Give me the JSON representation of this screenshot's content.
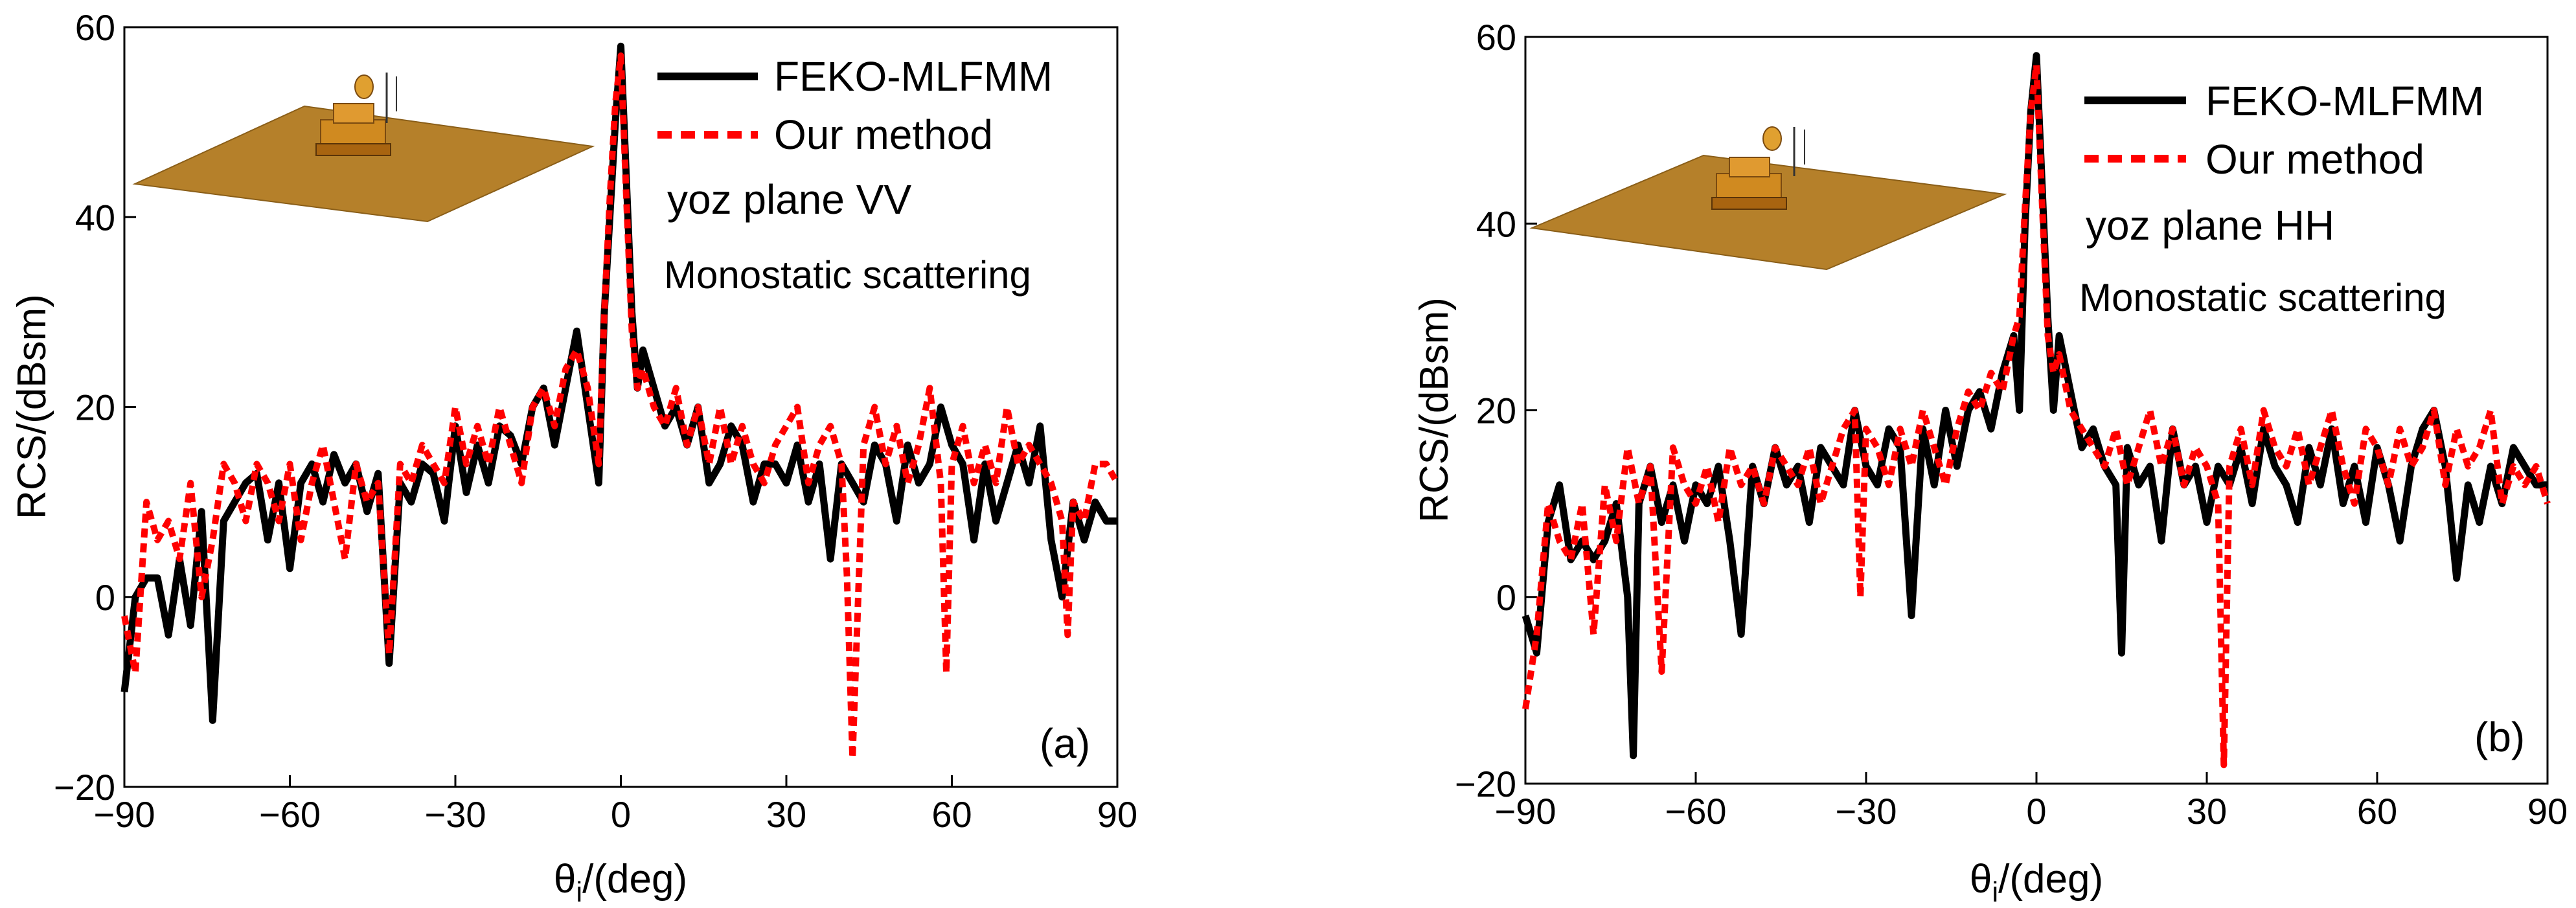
{
  "chart_data": [
    {
      "type": "line",
      "panel_label": "(a)",
      "xlabel_main": "θ",
      "xlabel_sub": "i",
      "xlabel_rest": "/(deg)",
      "ylabel": "RCS/(dBsm)",
      "xlim": [
        -90,
        90
      ],
      "ylim": [
        -20,
        60
      ],
      "xticks": [
        -90,
        -60,
        -30,
        0,
        30,
        60,
        90
      ],
      "yticks": [
        -20,
        0,
        20,
        40,
        60
      ],
      "xtick_labels": [
        "−90",
        "−60",
        "−30",
        "0",
        "30",
        "60",
        "90"
      ],
      "ytick_labels": [
        "−20",
        "0",
        "20",
        "40",
        "60"
      ],
      "legend": [
        "FEKO-MLFMM",
        "Our method"
      ],
      "annotations": [
        "yoz plane  VV",
        "Monostatic scattering"
      ],
      "series": [
        {
          "name": "FEKO-MLFMM",
          "color": "#000000",
          "x": [
            -90,
            -88,
            -86,
            -84,
            -82,
            -80,
            -78,
            -76,
            -74,
            -72,
            -70,
            -68,
            -66,
            -64,
            -62,
            -60,
            -58,
            -56,
            -54,
            -52,
            -50,
            -48,
            -46,
            -44,
            -42,
            -40,
            -38,
            -36,
            -34,
            -32,
            -30,
            -28,
            -26,
            -24,
            -22,
            -20,
            -18,
            -16,
            -14,
            -12,
            -10,
            -8,
            -6,
            -4,
            -3,
            -2,
            -1,
            0,
            1,
            2,
            3,
            4,
            6,
            8,
            10,
            12,
            14,
            16,
            18,
            20,
            22,
            24,
            26,
            28,
            30,
            32,
            34,
            36,
            38,
            40,
            42,
            44,
            46,
            48,
            50,
            52,
            54,
            56,
            58,
            60,
            62,
            64,
            66,
            68,
            70,
            72,
            74,
            76,
            78,
            80,
            82,
            84,
            86,
            88,
            90
          ],
          "y": [
            -10,
            0,
            2,
            2,
            -4,
            4,
            -3,
            9,
            -13,
            8,
            10,
            12,
            13,
            6,
            12,
            3,
            12,
            14,
            10,
            15,
            12,
            14,
            9,
            13,
            -7,
            12,
            10,
            14,
            13,
            8,
            18,
            11,
            16,
            12,
            18,
            17,
            14,
            20,
            22,
            16,
            22,
            28,
            20,
            12,
            30,
            40,
            50,
            58,
            44,
            30,
            22,
            26,
            22,
            18,
            20,
            16,
            20,
            12,
            14,
            18,
            16,
            10,
            14,
            14,
            12,
            16,
            10,
            14,
            4,
            14,
            12,
            10,
            16,
            14,
            8,
            16,
            12,
            14,
            20,
            16,
            14,
            6,
            14,
            8,
            12,
            16,
            12,
            18,
            6,
            0,
            10,
            6,
            10,
            8,
            8
          ],
          "dash": ""
        },
        {
          "name": "Our method",
          "color": "#ff0000",
          "x": [
            -90,
            -88,
            -86,
            -84,
            -82,
            -80,
            -78,
            -76,
            -74,
            -72,
            -70,
            -68,
            -66,
            -64,
            -62,
            -60,
            -58,
            -56,
            -54,
            -52,
            -50,
            -48,
            -46,
            -44,
            -42,
            -40,
            -38,
            -36,
            -34,
            -32,
            -30,
            -28,
            -26,
            -24,
            -22,
            -20,
            -18,
            -16,
            -14,
            -12,
            -10,
            -8,
            -6,
            -4,
            -3,
            -2,
            -1,
            0,
            1,
            2,
            3,
            4,
            6,
            8,
            10,
            12,
            14,
            16,
            18,
            20,
            22,
            24,
            26,
            28,
            30,
            32,
            34,
            36,
            38,
            40,
            41,
            42,
            44,
            46,
            48,
            50,
            52,
            54,
            56,
            58,
            59,
            60,
            62,
            64,
            66,
            68,
            70,
            72,
            74,
            76,
            78,
            80,
            81,
            82,
            84,
            86,
            88,
            90
          ],
          "y": [
            -2,
            -8,
            10,
            6,
            8,
            4,
            12,
            0,
            6,
            14,
            12,
            8,
            14,
            12,
            8,
            14,
            6,
            12,
            16,
            10,
            4,
            14,
            10,
            12,
            -6,
            14,
            12,
            16,
            14,
            12,
            20,
            14,
            18,
            14,
            20,
            16,
            12,
            20,
            22,
            18,
            24,
            26,
            22,
            14,
            30,
            42,
            52,
            57,
            42,
            28,
            22,
            24,
            20,
            18,
            22,
            16,
            20,
            14,
            20,
            14,
            18,
            14,
            12,
            16,
            18,
            20,
            12,
            16,
            18,
            14,
            2,
            -17,
            16,
            20,
            14,
            18,
            12,
            16,
            22,
            12,
            -8,
            14,
            18,
            12,
            16,
            12,
            20,
            14,
            16,
            14,
            12,
            8,
            -4,
            10,
            8,
            14,
            14,
            12
          ],
          "dash": "14 9"
        }
      ]
    },
    {
      "type": "line",
      "panel_label": "(b)",
      "xlabel_main": "θ",
      "xlabel_sub": "i",
      "xlabel_rest": "/(deg)",
      "ylabel": "RCS/(dBsm)",
      "xlim": [
        -90,
        90
      ],
      "ylim": [
        -20,
        60
      ],
      "xticks": [
        -90,
        -60,
        -30,
        0,
        30,
        60,
        90
      ],
      "yticks": [
        -20,
        0,
        20,
        40,
        60
      ],
      "xtick_labels": [
        "−90",
        "−60",
        "−30",
        "0",
        "30",
        "60",
        "90"
      ],
      "ytick_labels": [
        "−20",
        "0",
        "20",
        "40",
        "60"
      ],
      "legend": [
        "FEKO-MLFMM",
        "Our method"
      ],
      "annotations": [
        "yoz plane  HH",
        "Monostatic scattering"
      ],
      "series": [
        {
          "name": "FEKO-MLFMM",
          "color": "#000000",
          "x": [
            -90,
            -88,
            -86,
            -84,
            -82,
            -80,
            -78,
            -76,
            -74,
            -72,
            -71,
            -70,
            -68,
            -66,
            -64,
            -62,
            -60,
            -58,
            -56,
            -54,
            -52,
            -50,
            -48,
            -46,
            -44,
            -42,
            -40,
            -38,
            -36,
            -34,
            -32,
            -30,
            -28,
            -26,
            -24,
            -22,
            -20,
            -18,
            -16,
            -14,
            -12,
            -10,
            -8,
            -6,
            -4,
            -3,
            -2,
            -1,
            0,
            1,
            2,
            3,
            4,
            6,
            8,
            10,
            12,
            14,
            15,
            16,
            18,
            20,
            22,
            24,
            26,
            28,
            30,
            32,
            34,
            36,
            38,
            40,
            42,
            44,
            46,
            48,
            50,
            52,
            54,
            56,
            58,
            60,
            62,
            64,
            66,
            68,
            70,
            72,
            74,
            76,
            78,
            80,
            82,
            84,
            86,
            88,
            90
          ],
          "y": [
            -2,
            -6,
            8,
            12,
            4,
            6,
            4,
            6,
            10,
            0,
            -17,
            10,
            14,
            8,
            12,
            6,
            12,
            10,
            14,
            6,
            -4,
            14,
            10,
            16,
            12,
            14,
            8,
            16,
            14,
            12,
            20,
            14,
            12,
            18,
            16,
            -2,
            18,
            12,
            20,
            14,
            20,
            22,
            18,
            24,
            28,
            20,
            40,
            52,
            58,
            44,
            30,
            20,
            28,
            22,
            16,
            18,
            14,
            12,
            -6,
            16,
            12,
            14,
            6,
            18,
            12,
            14,
            8,
            14,
            12,
            16,
            10,
            18,
            14,
            12,
            8,
            16,
            12,
            18,
            10,
            14,
            8,
            16,
            12,
            6,
            14,
            18,
            20,
            14,
            2,
            12,
            8,
            14,
            10,
            16,
            14,
            12,
            12
          ],
          "dash": ""
        },
        {
          "name": "Our method",
          "color": "#ff0000",
          "x": [
            -90,
            -88,
            -86,
            -84,
            -82,
            -80,
            -78,
            -76,
            -74,
            -72,
            -70,
            -68,
            -66,
            -64,
            -62,
            -60,
            -58,
            -56,
            -54,
            -52,
            -50,
            -48,
            -46,
            -44,
            -42,
            -40,
            -38,
            -36,
            -34,
            -32,
            -31,
            -30,
            -28,
            -26,
            -24,
            -22,
            -20,
            -18,
            -16,
            -14,
            -12,
            -10,
            -8,
            -6,
            -4,
            -3,
            -2,
            -1,
            0,
            1,
            2,
            3,
            4,
            6,
            8,
            10,
            12,
            14,
            16,
            18,
            20,
            22,
            24,
            26,
            28,
            30,
            32,
            33,
            34,
            36,
            38,
            40,
            42,
            44,
            46,
            48,
            50,
            52,
            54,
            56,
            58,
            60,
            62,
            64,
            66,
            68,
            70,
            72,
            74,
            76,
            78,
            80,
            82,
            84,
            86,
            88,
            90
          ],
          "y": [
            -12,
            -4,
            10,
            6,
            4,
            10,
            -4,
            12,
            6,
            16,
            10,
            14,
            -8,
            16,
            12,
            10,
            14,
            8,
            16,
            12,
            14,
            10,
            16,
            14,
            12,
            16,
            10,
            14,
            18,
            20,
            0,
            18,
            16,
            12,
            18,
            14,
            20,
            16,
            12,
            18,
            22,
            20,
            24,
            22,
            28,
            30,
            42,
            52,
            57,
            42,
            28,
            24,
            26,
            20,
            18,
            16,
            14,
            18,
            12,
            16,
            20,
            14,
            18,
            12,
            16,
            14,
            10,
            -18,
            14,
            18,
            12,
            20,
            16,
            14,
            18,
            12,
            16,
            20,
            14,
            10,
            18,
            16,
            12,
            18,
            14,
            16,
            20,
            12,
            18,
            14,
            16,
            20,
            10,
            14,
            12,
            14,
            10
          ],
          "dash": "14 9"
        }
      ]
    }
  ]
}
